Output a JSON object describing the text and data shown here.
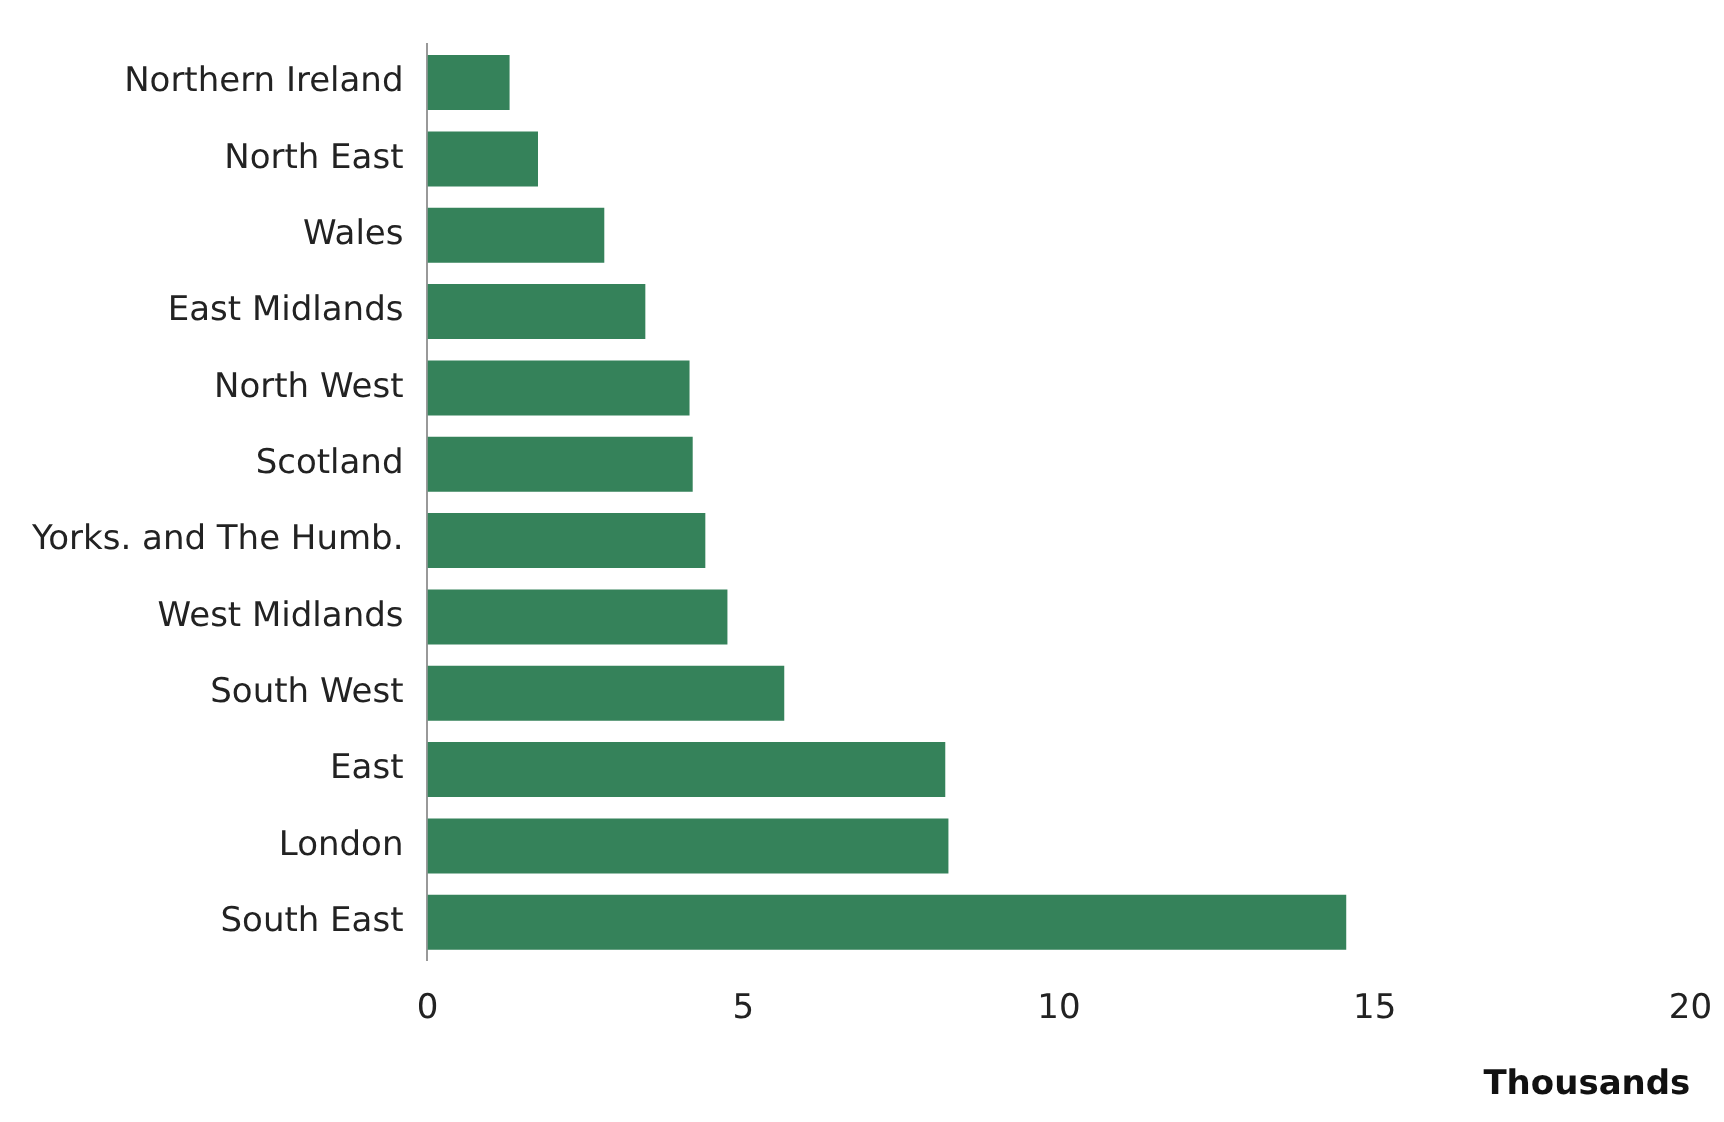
{
  "chart_data": {
    "type": "bar",
    "orientation": "horizontal",
    "xlabel": "Thousands",
    "categories": [
      "Northern Ireland",
      "North East",
      "Wales",
      "East Midlands",
      "North West",
      "Scotland",
      "Yorks. and The Humb.",
      "West Midlands",
      "South West",
      "East",
      "London",
      "South East"
    ],
    "values": [
      1.3,
      1.75,
      2.8,
      3.45,
      4.15,
      4.2,
      4.4,
      4.75,
      5.65,
      8.2,
      8.25,
      14.55
    ],
    "color": "#35825a",
    "xlim": [
      0,
      20
    ],
    "xticks": [
      0,
      5,
      10,
      15,
      20
    ],
    "grid": false,
    "legend": false
  }
}
